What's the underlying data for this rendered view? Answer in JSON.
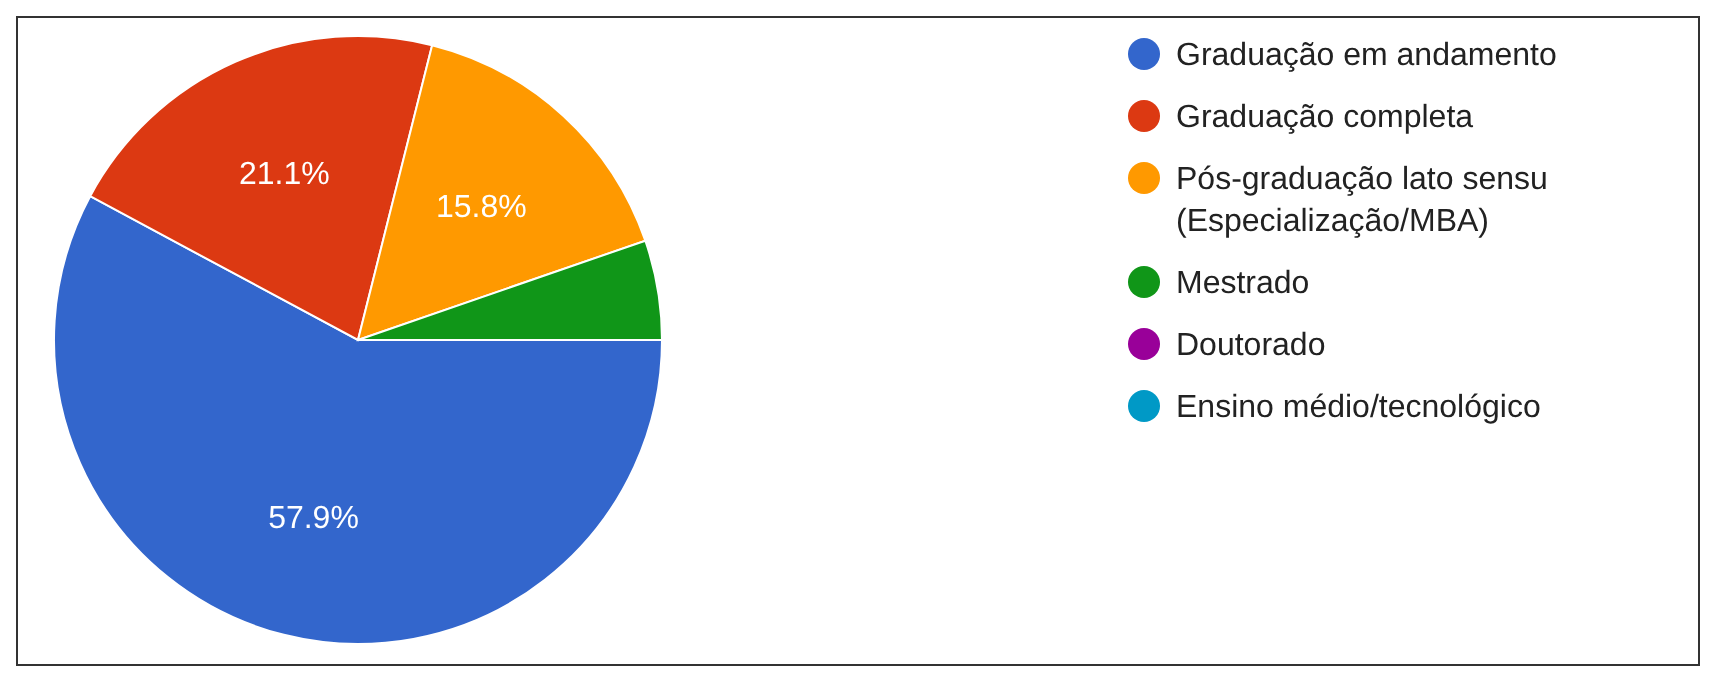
{
  "chart_data": {
    "type": "pie",
    "categories": [
      "Graduação em andamento",
      "Graduação completa",
      "Pós-graduação lato sensu (Especialização/MBA)",
      "Mestrado",
      "Doutorado",
      "Ensino médio/tecnológico"
    ],
    "values": [
      57.9,
      21.1,
      15.8,
      5.3,
      0,
      0
    ],
    "colors": [
      "#3366cc",
      "#dc3912",
      "#ff9900",
      "#109618",
      "#990099",
      "#0099c6"
    ],
    "value_labels": [
      "57.9%",
      "21.1%",
      "15.8%",
      null,
      null,
      null
    ],
    "legend": "right"
  }
}
